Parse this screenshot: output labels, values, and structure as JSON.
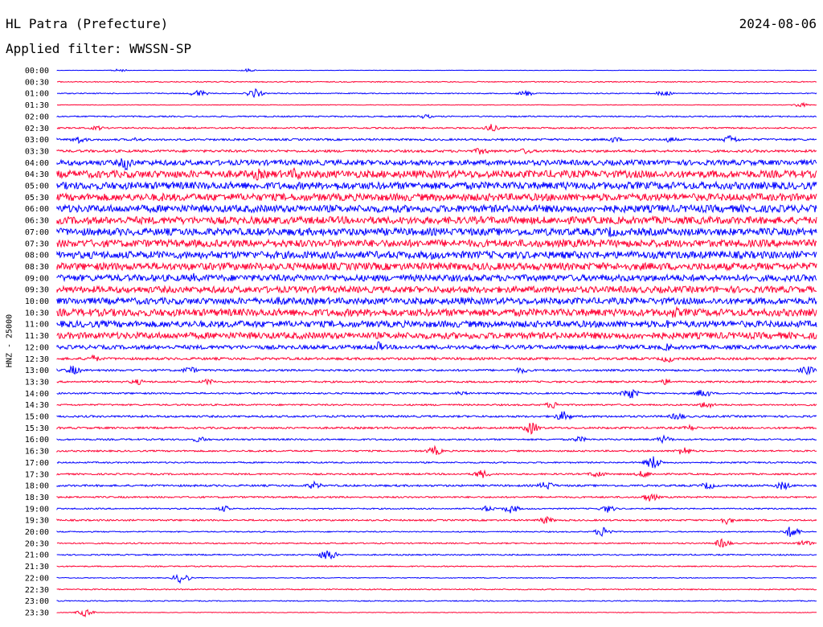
{
  "header": {
    "station": "HL Patra (Prefecture)",
    "date": "2024-08-06",
    "filter_label": "Applied filter: WWSSN-SP"
  },
  "chart_data": {
    "type": "line",
    "title": "HL Patra (Prefecture)",
    "ylabel": "HNZ - 25000",
    "row_labels": [
      "00:00",
      "00:30",
      "01:00",
      "01:30",
      "02:00",
      "02:30",
      "03:00",
      "03:30",
      "04:00",
      "04:30",
      "05:00",
      "05:30",
      "06:00",
      "06:30",
      "07:00",
      "07:30",
      "08:00",
      "08:30",
      "09:00",
      "09:30",
      "10:00",
      "10:30",
      "11:00",
      "11:30",
      "12:00",
      "12:30",
      "13:00",
      "13:30",
      "14:00",
      "14:30",
      "15:00",
      "15:30",
      "16:00",
      "16:30",
      "17:00",
      "17:30",
      "18:00",
      "18:30",
      "19:00",
      "19:30",
      "20:00",
      "20:30",
      "21:00",
      "21:30",
      "22:00",
      "22:30",
      "23:00",
      "23:30"
    ],
    "row_colors": [
      "#0000ff",
      "#ff0033"
    ],
    "noise_level": [
      0.2,
      0.6,
      0.6,
      0.4,
      0.8,
      0.9,
      1.2,
      1.5,
      3.2,
      4.5,
      4.5,
      4.5,
      4.5,
      4.5,
      4.5,
      4.5,
      4.5,
      4.5,
      4.0,
      4.0,
      4.0,
      4.5,
      4.0,
      4.0,
      2.5,
      1.5,
      1.2,
      1.1,
      1.0,
      1.0,
      1.2,
      1.2,
      1.0,
      1.0,
      0.9,
      1.0,
      1.2,
      1.0,
      0.8,
      1.0,
      0.7,
      0.8,
      0.8,
      0.7,
      0.5,
      0.7,
      0.6,
      0.4
    ],
    "events": [
      [
        [
          78,
          2
        ],
        [
          237,
          2
        ]
      ],
      [],
      [
        [
          176,
          5
        ],
        [
          246,
          6
        ],
        [
          583,
          4
        ],
        [
          755,
          4
        ]
      ],
      [
        [
          925,
          3
        ]
      ],
      [
        [
          458,
          3
        ]
      ],
      [
        [
          50,
          3
        ],
        [
          540,
          5
        ]
      ],
      [
        [
          27,
          5
        ],
        [
          99,
          3
        ],
        [
          693,
          4
        ],
        [
          763,
          4
        ],
        [
          838,
          6
        ]
      ],
      [
        [
          528,
          5
        ],
        [
          583,
          4
        ]
      ],
      [
        [
          86,
          10
        ],
        [
          620,
          3
        ]
      ],
      [
        [
          250,
          8
        ],
        [
          297,
          9
        ],
        [
          616,
          6
        ]
      ],
      [
        [
          350,
          6
        ],
        [
          630,
          6
        ]
      ],
      [
        [
          133,
          6
        ],
        [
          651,
          5
        ]
      ],
      [
        [
          12,
          6
        ],
        [
          750,
          6
        ]
      ],
      [
        [
          527,
          5
        ]
      ],
      [
        [
          690,
          8
        ]
      ],
      [
        [
          648,
          6
        ]
      ],
      [
        [
          467,
          6
        ]
      ],
      [
        [
          68,
          6
        ],
        [
          467,
          6
        ]
      ],
      [
        [
          170,
          6
        ],
        [
          653,
          4
        ]
      ],
      [
        [
          578,
          4
        ]
      ],
      [
        [
          280,
          7
        ],
        [
          500,
          6
        ]
      ],
      [
        [
          768,
          8
        ]
      ],
      [
        [
          225,
          6
        ],
        [
          760,
          6
        ]
      ],
      [
        [
          60,
          4
        ],
        [
          760,
          4
        ]
      ],
      [
        [
          400,
          7
        ],
        [
          760,
          5
        ]
      ],
      [
        [
          45,
          5
        ],
        [
          760,
          5
        ]
      ],
      [
        [
          20,
          6
        ],
        [
          165,
          5
        ],
        [
          578,
          4
        ],
        [
          933,
          6
        ]
      ],
      [
        [
          100,
          4
        ],
        [
          188,
          4
        ],
        [
          757,
          4
        ]
      ],
      [
        [
          503,
          3
        ],
        [
          713,
          8
        ],
        [
          804,
          6
        ]
      ],
      [
        [
          617,
          5
        ],
        [
          808,
          5
        ]
      ],
      [
        [
          630,
          7
        ],
        [
          772,
          5
        ]
      ],
      [
        [
          590,
          8
        ],
        [
          788,
          4
        ]
      ],
      [
        [
          178,
          4
        ],
        [
          650,
          4
        ],
        [
          755,
          5
        ]
      ],
      [
        [
          470,
          6
        ],
        [
          780,
          6
        ]
      ],
      [
        [
          742,
          9
        ]
      ],
      [
        [
          528,
          6
        ],
        [
          672,
          5
        ],
        [
          730,
          5
        ]
      ],
      [
        [
          320,
          5
        ],
        [
          609,
          6
        ],
        [
          810,
          5
        ],
        [
          903,
          6
        ]
      ],
      [
        [
          738,
          6
        ]
      ],
      [
        [
          208,
          4
        ],
        [
          535,
          4
        ],
        [
          565,
          6
        ],
        [
          685,
          5
        ]
      ],
      [
        [
          608,
          5
        ],
        [
          833,
          5
        ]
      ],
      [
        [
          680,
          7
        ],
        [
          914,
          8
        ]
      ],
      [
        [
          828,
          6
        ],
        [
          930,
          4
        ]
      ],
      [
        [
          337,
          8
        ]
      ],
      [],
      [
        [
          155,
          7
        ]
      ],
      [],
      [],
      [
        [
          35,
          5
        ]
      ]
    ]
  }
}
